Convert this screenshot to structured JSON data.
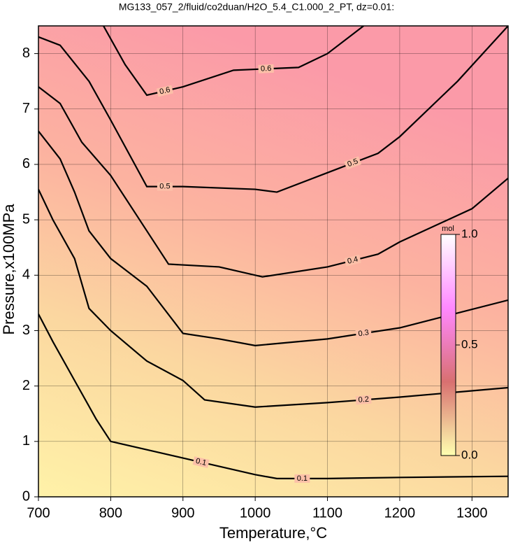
{
  "chart_data": {
    "type": "contour",
    "title": "MG133_057_2/fluid/co2duan/H2O_5.4_C1.000_2_PT, dz=0.01:",
    "x_label": "Temperature,°C",
    "y_label": "Pressure,x100MPa",
    "xlim": [
      700,
      1350
    ],
    "ylim": [
      0,
      8.5
    ],
    "xticks": [
      700,
      800,
      900,
      1000,
      1100,
      1200,
      1300
    ],
    "yticks": [
      0,
      1,
      2,
      3,
      4,
      5,
      6,
      7,
      8
    ],
    "grid": true,
    "colorbar": {
      "label": "mol",
      "lim": [
        0,
        1
      ],
      "ticks": [
        {
          "value": 0,
          "label": "0.0"
        },
        0.5,
        {
          "value": 1,
          "label": "1.0"
        }
      ],
      "colors": [
        "#ffffb0",
        "#d87070",
        "#ff88ff",
        "#ffffff"
      ]
    },
    "contours": [
      {
        "level": 0.1,
        "x": [
          700,
          720,
          750,
          780,
          800,
          850,
          900,
          950,
          1000,
          1030,
          1100,
          1200,
          1350
        ],
        "y": [
          3.3,
          2.8,
          2.1,
          1.4,
          1.0,
          0.85,
          0.7,
          0.55,
          0.4,
          0.33,
          0.33,
          0.35,
          0.37
        ]
      },
      {
        "level": 0.2,
        "x": [
          700,
          720,
          750,
          770,
          800,
          850,
          900,
          930,
          1000,
          1100,
          1200,
          1350
        ],
        "y": [
          5.55,
          5.0,
          4.3,
          3.4,
          3.0,
          2.45,
          2.1,
          1.75,
          1.62,
          1.7,
          1.8,
          1.97
        ]
      },
      {
        "level": 0.3,
        "x": [
          700,
          730,
          750,
          770,
          800,
          850,
          900,
          950,
          1000,
          1100,
          1200,
          1350
        ],
        "y": [
          6.6,
          6.1,
          5.5,
          4.8,
          4.3,
          3.8,
          2.95,
          2.85,
          2.73,
          2.85,
          3.05,
          3.55
        ]
      },
      {
        "level": 0.4,
        "x": [
          700,
          730,
          760,
          800,
          850,
          880,
          950,
          1010,
          1100,
          1170,
          1200,
          1300,
          1350
        ],
        "y": [
          7.4,
          7.1,
          6.4,
          5.8,
          4.8,
          4.2,
          4.15,
          3.97,
          4.15,
          4.38,
          4.6,
          5.2,
          5.75
        ]
      },
      {
        "level": 0.5,
        "x": [
          700,
          730,
          770,
          800,
          850,
          900,
          1000,
          1030,
          1100,
          1170,
          1200,
          1280,
          1350
        ],
        "y": [
          8.3,
          8.15,
          7.5,
          6.8,
          5.6,
          5.6,
          5.55,
          5.5,
          5.85,
          6.2,
          6.5,
          7.5,
          8.5
        ]
      },
      {
        "level": 0.6,
        "x": [
          790,
          820,
          850,
          900,
          970,
          1060,
          1100,
          1150
        ],
        "y": [
          8.5,
          7.8,
          7.25,
          7.4,
          7.7,
          7.75,
          8.0,
          8.5
        ]
      }
    ]
  }
}
